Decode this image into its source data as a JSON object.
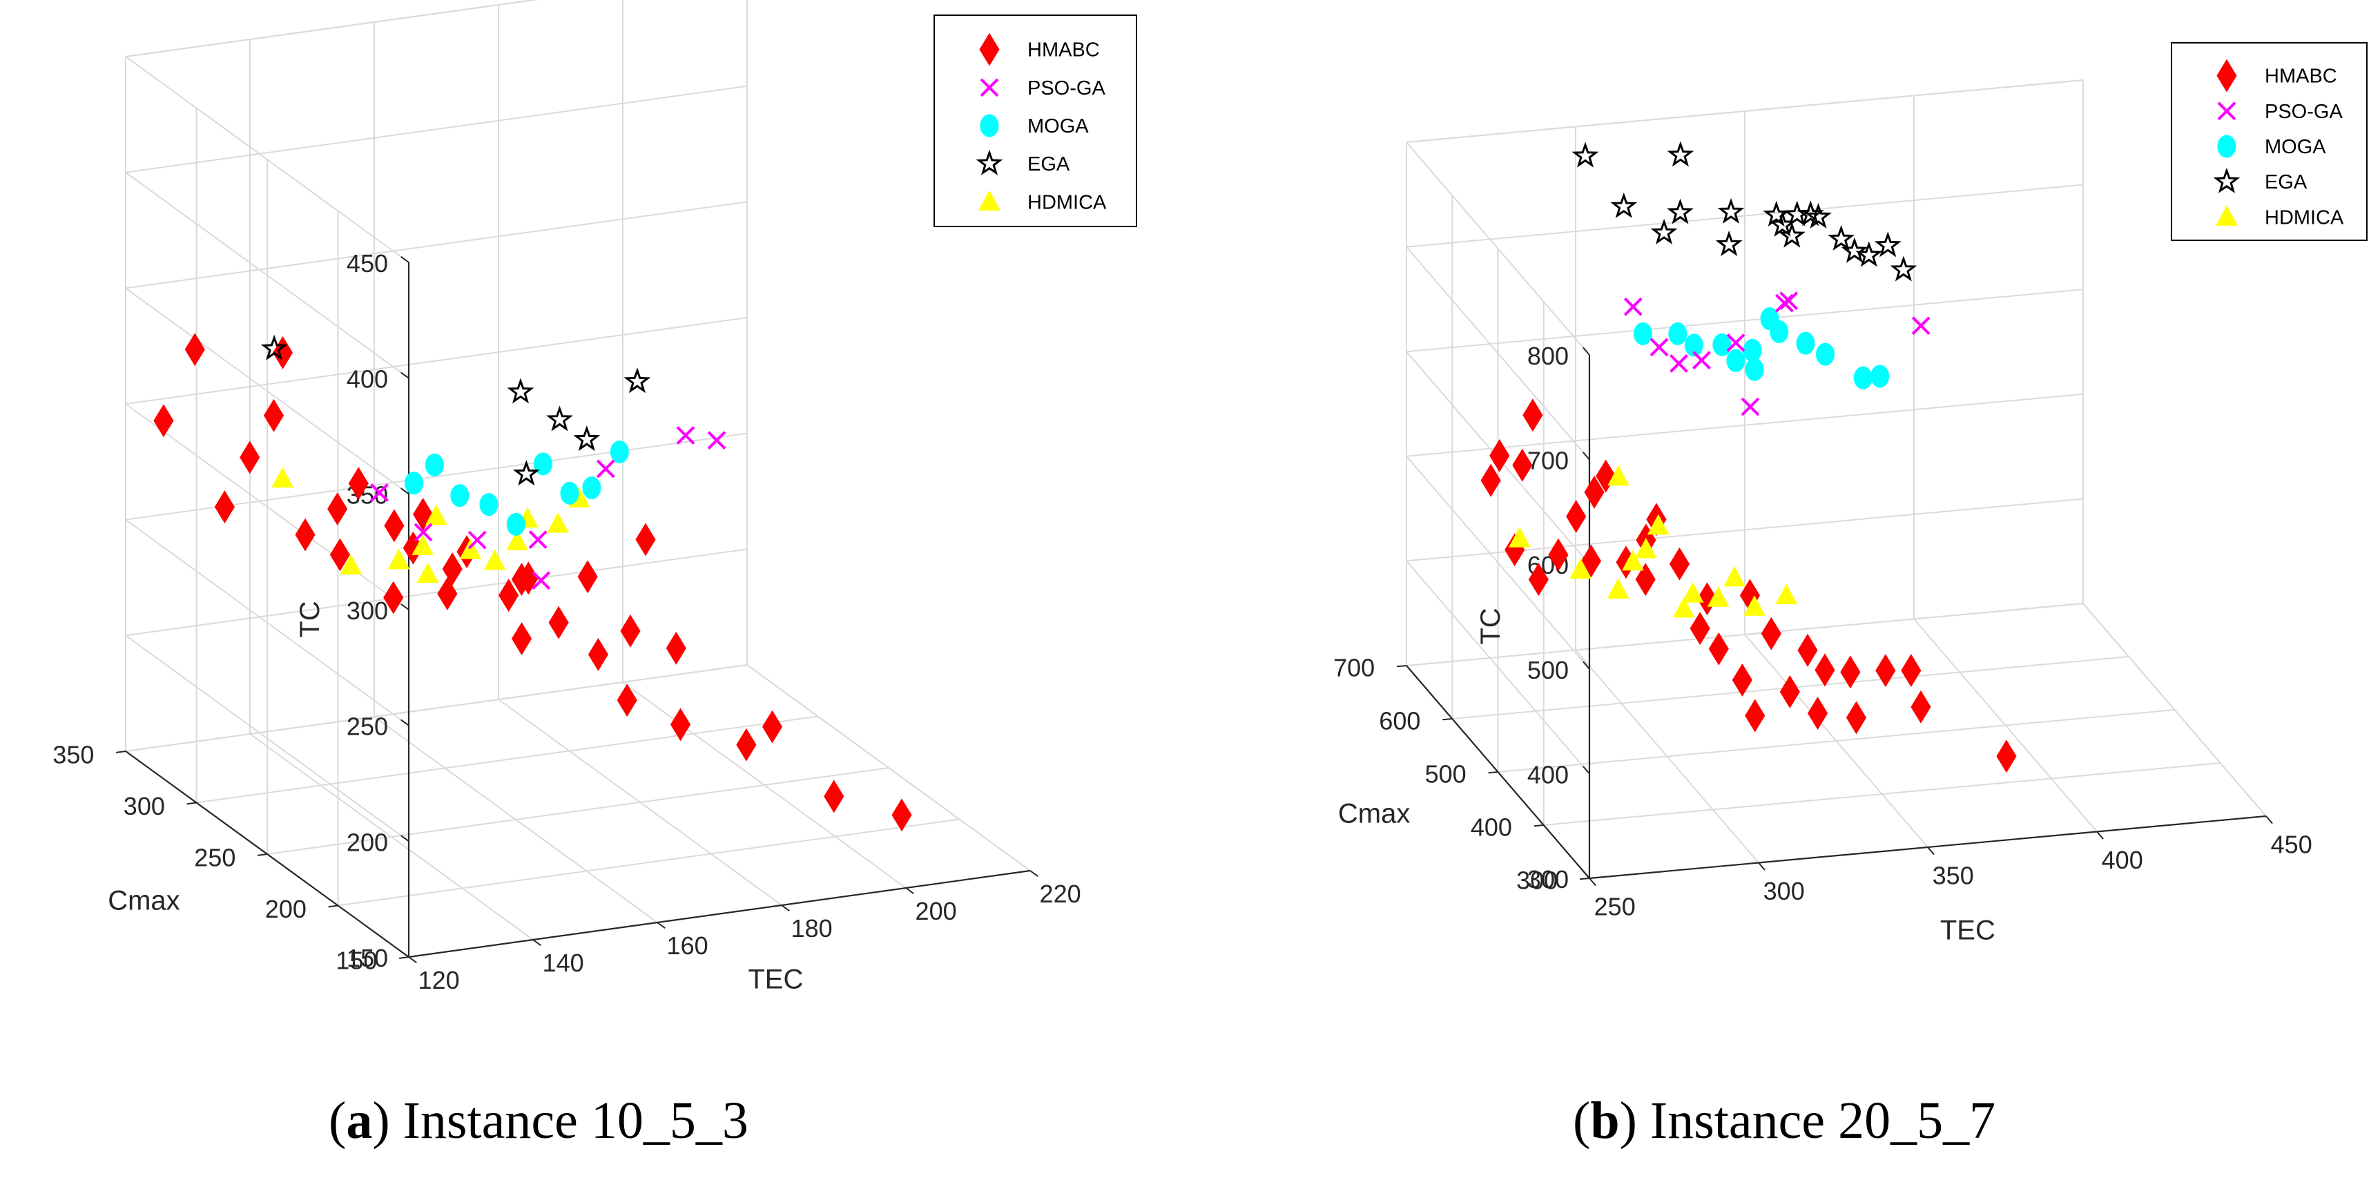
{
  "legend_labels": [
    "HMABC",
    "PSO-GA",
    "MOGA",
    "EGA",
    "HDMICA"
  ],
  "series_colors": {
    "HMABC": "#ff0000",
    "PSO-GA": "#ff00ff",
    "MOGA": "#00ffff",
    "EGA": "#000000",
    "HDMICA": "#ffff00"
  },
  "series_markers": {
    "HMABC": "diamond",
    "PSO-GA": "x",
    "MOGA": "circle",
    "EGA": "star",
    "HDMICA": "triangle"
  },
  "captions": [
    {
      "letter": "a",
      "text": "Instance 10_5_3"
    },
    {
      "letter": "b",
      "text": "Instance 20_5_7"
    }
  ],
  "chart_data": [
    {
      "type": "scatter3d",
      "id": "a",
      "xlabel": "TEC",
      "ylabel": "Cmax",
      "zlabel": "TC",
      "xlim": [
        120,
        220
      ],
      "ylim": [
        150,
        350
      ],
      "zlim": [
        150,
        450
      ],
      "xticks": [
        120,
        140,
        160,
        180,
        200,
        220
      ],
      "yticks": [
        150,
        200,
        250,
        300,
        350
      ],
      "zticks": [
        150,
        200,
        250,
        300,
        350,
        400,
        450
      ],
      "grid": true,
      "legend_position": "top-right",
      "series": [
        {
          "name": "HMABC",
          "points": [
            [
              122,
              332,
              300
            ],
            [
              130,
              345,
              322
            ],
            [
              125,
              302,
              275
            ],
            [
              132,
              315,
              288
            ],
            [
              137,
              320,
              302
            ],
            [
              143,
              340,
              318
            ],
            [
              135,
              289,
              265
            ],
            [
              142,
              297,
              270
            ],
            [
              139,
              282,
              258
            ],
            [
              147,
              304,
              276
            ],
            [
              150,
              292,
              262
            ],
            [
              146,
              275,
              240
            ],
            [
              156,
              298,
              262
            ],
            [
              154,
              272,
              240
            ],
            [
              161,
              289,
              248
            ],
            [
              165,
              277,
              233
            ],
            [
              163,
              259,
              223
            ],
            [
              170,
              285,
              235
            ],
            [
              171,
              268,
              223
            ],
            [
              176,
              262,
              210
            ],
            [
              180,
              287,
              231
            ],
            [
              183,
              270,
              214
            ],
            [
              177,
              246,
              197
            ],
            [
              184,
              239,
              187
            ],
            [
              189,
              264,
              207
            ],
            [
              190,
              290,
              242
            ],
            [
              193,
              232,
              178
            ],
            [
              199,
              240,
              180
            ],
            [
              203,
              214,
              160
            ],
            [
              213,
              210,
              150
            ],
            [
              158,
              286,
              243
            ],
            [
              168,
              281,
              237
            ],
            [
              151,
              283,
              256
            ]
          ]
        },
        {
          "name": "PSO-GA",
          "points": [
            [
              149,
              298,
              274
            ],
            [
              154,
              289,
              259
            ],
            [
              162,
              286,
              254
            ],
            [
              170,
              276,
              238
            ],
            [
              172,
              287,
              250
            ],
            [
              187,
              305,
              267
            ],
            [
              201,
              310,
              274
            ],
            [
              206,
              310,
              270
            ]
          ]
        },
        {
          "name": "MOGA",
          "points": [
            [
              155,
              300,
              275
            ],
            [
              159,
              303,
              280
            ],
            [
              161,
              294,
              270
            ],
            [
              165,
              291,
              266
            ],
            [
              168,
              285,
              259
            ],
            [
              176,
              301,
              275
            ],
            [
              178,
              291,
              266
            ],
            [
              182,
              293,
              266
            ],
            [
              189,
              304,
              274
            ]
          ]
        },
        {
          "name": "EGA",
          "points": [
            [
              143,
              346,
              317
            ],
            [
              179,
              330,
              292
            ],
            [
              183,
              320,
              283
            ],
            [
              186,
              314,
              276
            ],
            [
              198,
              331,
              289
            ],
            [
              174,
              304,
              270
            ]
          ]
        },
        {
          "name": "HDMICA",
          "points": [
            [
              141,
              283,
              252
            ],
            [
              148,
              280,
              253
            ],
            [
              153,
              285,
              255
            ],
            [
              160,
              282,
              252
            ],
            [
              163,
              278,
              248
            ],
            [
              168,
              284,
              252
            ],
            [
              175,
              286,
              256
            ],
            [
              180,
              293,
              262
            ],
            [
              157,
              293,
              263
            ],
            [
              171,
              290,
              258
            ],
            [
              135,
              305,
              282
            ],
            [
              152,
              277,
              247
            ]
          ]
        }
      ]
    },
    {
      "type": "scatter3d",
      "id": "b",
      "xlabel": "TEC",
      "ylabel": "Cmax",
      "zlabel": "TC",
      "xlim": [
        250,
        450
      ],
      "ylim": [
        300,
        700
      ],
      "zlim": [
        300,
        800
      ],
      "xticks": [
        250,
        300,
        350,
        400,
        450
      ],
      "yticks": [
        300,
        400,
        500,
        600,
        700
      ],
      "zticks": [
        300,
        400,
        500,
        600,
        700,
        800
      ],
      "grid": true,
      "legend_position": "top-right",
      "series": [
        {
          "name": "HMABC",
          "points": [
            [
              261,
              597,
              526
            ],
            [
              266,
              615,
              539
            ],
            [
              271,
              602,
              535
            ],
            [
              278,
              631,
              566
            ],
            [
              264,
              567,
              474
            ],
            [
              270,
              559,
              448
            ],
            [
              278,
              575,
              461
            ],
            [
              285,
              588,
              489
            ],
            [
              292,
              600,
              504
            ],
            [
              287,
              570,
              455
            ],
            [
              298,
              575,
              448
            ],
            [
              305,
              583,
              463
            ],
            [
              302,
              562,
              437
            ],
            [
              313,
              569,
              445
            ],
            [
              319,
              553,
              418
            ],
            [
              315,
              539,
              398
            ],
            [
              320,
              535,
              379
            ],
            [
              326,
              528,
              351
            ],
            [
              328,
              515,
              323
            ],
            [
              337,
              546,
              383
            ],
            [
              339,
              520,
              340
            ],
            [
              346,
              533,
              371
            ],
            [
              346,
              511,
              322
            ],
            [
              350,
              525,
              355
            ],
            [
              357,
              521,
              353
            ],
            [
              357,
              508,
              316
            ],
            [
              367,
              518,
              353
            ],
            [
              374,
              514,
              353
            ],
            [
              375,
              500,
              325
            ],
            [
              393,
              446,
              300
            ],
            [
              333,
              563,
              412
            ],
            [
              295,
              597,
              520
            ],
            [
              309,
              590,
              478
            ]
          ]
        },
        {
          "name": "PSO-GA",
          "points": [
            [
              317,
              700,
              623
            ],
            [
              322,
              680,
              593
            ],
            [
              327,
              674,
              579
            ],
            [
              334,
              676,
              579
            ],
            [
              345,
              651,
              544
            ],
            [
              362,
              702,
              612
            ],
            [
              363,
              700,
              615
            ],
            [
              401,
              692,
              584
            ],
            [
              346,
              690,
              585
            ]
          ]
        },
        {
          "name": "MOGA",
          "points": [
            [
              318,
              686,
              604
            ],
            [
              328,
              684,
              602
            ],
            [
              332,
              678,
              593
            ],
            [
              340,
              676,
              592
            ],
            [
              343,
              668,
              580
            ],
            [
              349,
              676,
              584
            ],
            [
              358,
              684,
              595
            ],
            [
              365,
              678,
              585
            ],
            [
              370,
              672,
              576
            ],
            [
              379,
              656,
              559
            ],
            [
              384,
              656,
              559
            ],
            [
              356,
              690,
              605
            ],
            [
              348,
              664,
              572
            ]
          ]
        },
        {
          "name": "EGA",
          "points": [
            [
              313,
              775,
              730
            ],
            [
              321,
              750,
              692
            ],
            [
              331,
              736,
              671
            ],
            [
              337,
              745,
              684
            ],
            [
              341,
              774,
              723
            ],
            [
              349,
              727,
              659
            ],
            [
              352,
              745,
              680
            ],
            [
              365,
              742,
              675
            ],
            [
              366,
              736,
              668
            ],
            [
              371,
              741,
              674
            ],
            [
              368,
              730,
              660
            ],
            [
              377,
              739,
              671
            ],
            [
              382,
              726,
              655
            ],
            [
              385,
              719,
              646
            ],
            [
              389,
              717,
              642
            ],
            [
              395,
              720,
              648
            ],
            [
              398,
              708,
              630
            ],
            [
              375,
              741,
              673
            ]
          ]
        },
        {
          "name": "HDMICA",
          "points": [
            [
              266,
              571,
              482
            ],
            [
              282,
              556,
              455
            ],
            [
              292,
              548,
              437
            ],
            [
              298,
              560,
              456
            ],
            [
              302,
              561,
              466
            ],
            [
              307,
              571,
              482
            ],
            [
              309,
              530,
              423
            ],
            [
              320,
              536,
              427
            ],
            [
              330,
              531,
              418
            ],
            [
              340,
              535,
              424
            ],
            [
              299,
              599,
              517
            ],
            [
              313,
              540,
              431
            ],
            [
              326,
              545,
              440
            ]
          ]
        }
      ]
    }
  ]
}
